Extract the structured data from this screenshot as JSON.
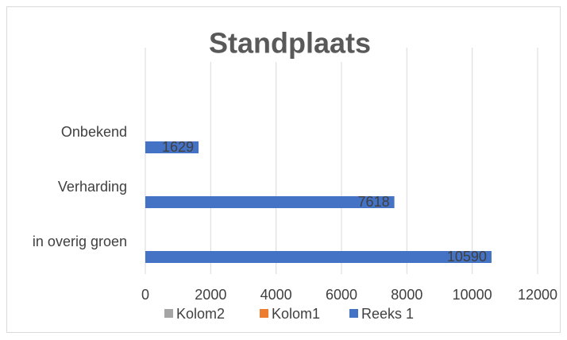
{
  "chart_data": {
    "type": "bar",
    "orientation": "horizontal",
    "title": "Standplaats",
    "categories": [
      "in overig groen",
      "Verharding",
      "Onbekend"
    ],
    "series": [
      {
        "name": "Kolom2",
        "color": "#a5a5a5",
        "values": [
          null,
          null,
          null
        ]
      },
      {
        "name": "Kolom1",
        "color": "#ed7d31",
        "values": [
          null,
          null,
          null
        ]
      },
      {
        "name": "Reeks 1",
        "color": "#4472c4",
        "values": [
          10590,
          7618,
          1629
        ]
      }
    ],
    "xlim": [
      0,
      12000
    ],
    "xticks": [
      0,
      2000,
      4000,
      6000,
      8000,
      10000,
      12000
    ],
    "grid": true,
    "legend": "bottom",
    "data_labels": true
  }
}
